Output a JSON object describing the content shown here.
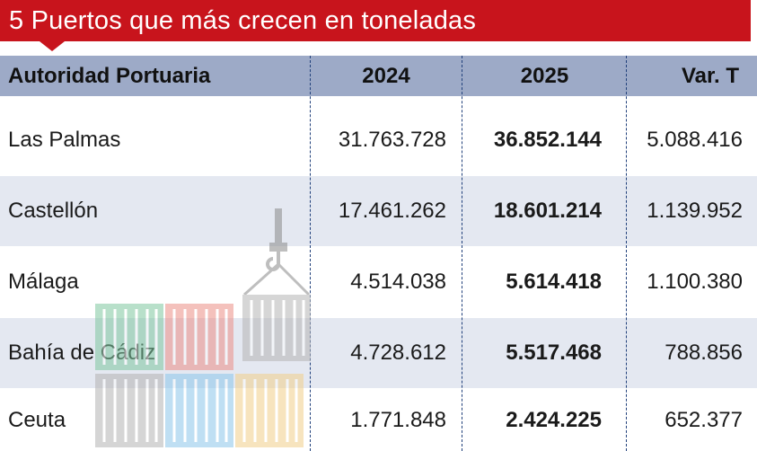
{
  "title": "5 Puertos que más crecen en toneladas",
  "headers": {
    "name": "Autoridad Portuaria",
    "y2024": "2024",
    "y2025": "2025",
    "var": "Var. T"
  },
  "rows": [
    {
      "name": "Las Palmas",
      "y2024": "31.763.728",
      "y2025": "36.852.144",
      "var": "5.088.416"
    },
    {
      "name": "Castellón",
      "y2024": "17.461.262",
      "y2025": "18.601.214",
      "var": "1.139.952"
    },
    {
      "name": "Málaga",
      "y2024": "4.514.038",
      "y2025": "5.614.418",
      "var": "1.100.380"
    },
    {
      "name": "Bahía de Cádiz",
      "y2024": "4.728.612",
      "y2025": "5.517.468",
      "var": "788.856"
    },
    {
      "name": "Ceuta",
      "y2024": "1.771.848",
      "y2025": "2.424.225",
      "var": "652.377"
    }
  ],
  "colors": {
    "title_bg": "#c8141c",
    "header_bg": "#9daac7",
    "alt_row_bg": "#e4e8f1",
    "divider": "#1f3f7a"
  },
  "icons": [
    "shipping-containers-crane-icon"
  ]
}
